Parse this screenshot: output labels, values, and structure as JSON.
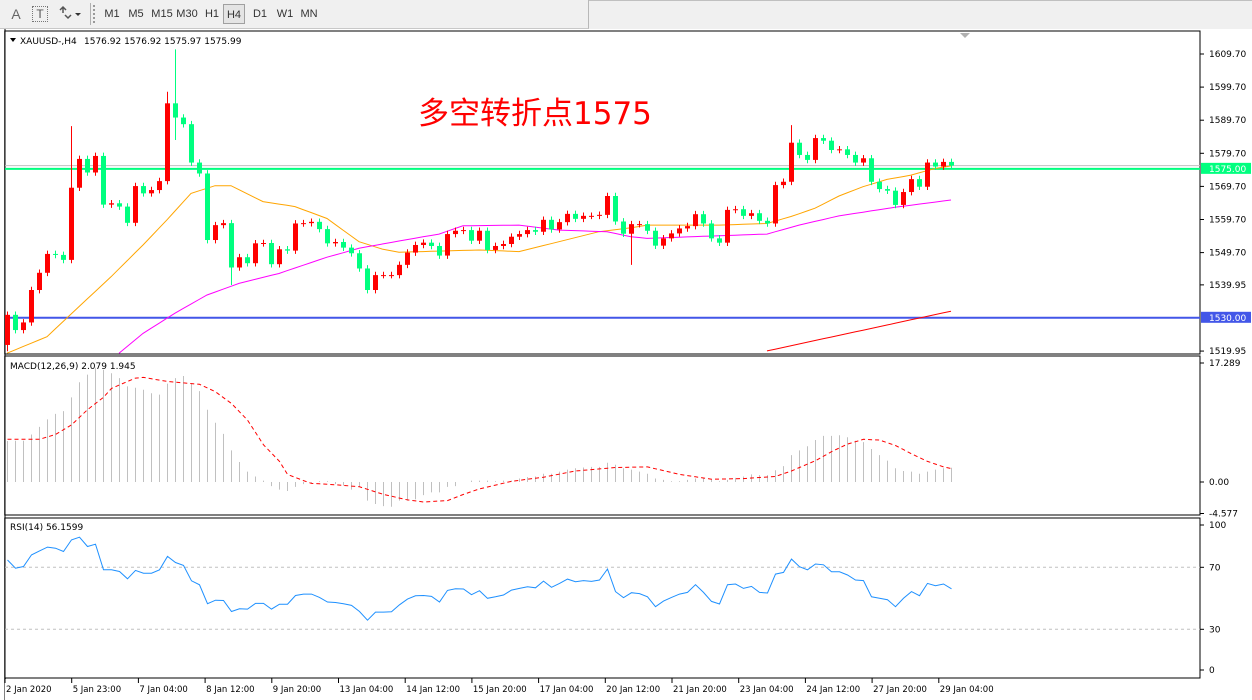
{
  "toolbar": {
    "tools": [
      {
        "label": "A",
        "icon": "text-tool-icon"
      },
      {
        "label": "T",
        "icon": "text-label-tool-icon"
      },
      {
        "label": "",
        "icon": "arrows-tool-icon"
      }
    ],
    "timeframes": [
      "M1",
      "M5",
      "M15",
      "M30",
      "H1",
      "H4",
      "D1",
      "W1",
      "MN"
    ],
    "active_timeframe": "H4"
  },
  "chart_header": {
    "symbol": "XAUUSD-,H4",
    "ohlc": "1576.92 1576.92 1575.97 1575.99"
  },
  "annotation": "多空转折点1575",
  "colors": {
    "bull_candle": "#ff0000",
    "bear_candle": "#00ff7f",
    "ma_fast": "#ffa500",
    "ma_slow": "#ff00ff",
    "ma_long": "#ff0000",
    "macd_histogram": "#c0c0c0",
    "macd_signal": "#ff0000",
    "rsi_line": "#1e90ff",
    "level_line": "#c0c0c0"
  },
  "chart_data": [
    {
      "type": "candlestick",
      "title": "XAUUSD-,H4",
      "ylim": [
        1519.95,
        1609.7
      ],
      "price_ticks": [
        {
          "label": "1609.70",
          "value": 1609.7
        },
        {
          "label": "1599.70",
          "value": 1599.7
        },
        {
          "label": "1589.70",
          "value": 1589.7
        },
        {
          "label": "1579.70",
          "value": 1579.7
        },
        {
          "label": "1569.70",
          "value": 1569.7
        },
        {
          "label": "1559.70",
          "value": 1559.7
        },
        {
          "label": "1549.70",
          "value": 1549.7
        },
        {
          "label": "1539.95",
          "value": 1539.95
        },
        {
          "label": "1519.95",
          "value": 1519.95
        }
      ],
      "time_labels": [
        "2 Jan 2020",
        "5 Jan 23:00",
        "7 Jan 04:00",
        "8 Jan 12:00",
        "9 Jan 20:00",
        "13 Jan 04:00",
        "14 Jan 12:00",
        "15 Jan 20:00",
        "17 Jan 04:00",
        "20 Jan 12:00",
        "21 Jan 20:00",
        "23 Jan 04:00",
        "24 Jan 12:00",
        "27 Jan 20:00",
        "29 Jan 04:00"
      ],
      "first_open": 1521.8,
      "close": [
        1530.9,
        1526.3,
        1528.6,
        1538.4,
        1543.6,
        1549.3,
        1549.0,
        1547.5,
        1569.3,
        1578.0,
        1573.9,
        1578.9,
        1564.2,
        1564.6,
        1563.6,
        1558.7,
        1569.8,
        1567.6,
        1568.6,
        1571.3,
        1594.8,
        1590.5,
        1588.5,
        1576.9,
        1573.6,
        1553.5,
        1558.0,
        1558.6,
        1545.2,
        1548.3,
        1546.5,
        1552.5,
        1552.6,
        1546.2,
        1550.7,
        1550.3,
        1558.5,
        1558.6,
        1559.0,
        1556.8,
        1552.5,
        1552.9,
        1551.2,
        1549.5,
        1544.9,
        1538.4,
        1542.9,
        1542.9,
        1542.9,
        1546.0,
        1549.7,
        1552.0,
        1552.7,
        1551.7,
        1548.8,
        1555.3,
        1556.3,
        1556.5,
        1553.3,
        1556.3,
        1550.5,
        1551.7,
        1552.3,
        1554.5,
        1555.3,
        1556.5,
        1556.0,
        1559.6,
        1556.7,
        1558.9,
        1561.4,
        1559.9,
        1560.8,
        1560.8,
        1561.1,
        1566.8,
        1559.1,
        1555.4,
        1558.3,
        1558.3,
        1556.3,
        1551.8,
        1554.0,
        1555.5,
        1557.0,
        1557.7,
        1561.3,
        1558.5,
        1554.0,
        1552.7,
        1562.6,
        1562.8,
        1560.8,
        1561.6,
        1559.3,
        1558.5,
        1570.1,
        1571.1,
        1582.9,
        1579.2,
        1577.7,
        1584.3,
        1583.5,
        1580.7,
        1580.9,
        1579.2,
        1576.9,
        1578.2,
        1571.1,
        1568.9,
        1568.4,
        1564.1,
        1568.0,
        1571.9,
        1569.6,
        1576.9,
        1575.7,
        1577.1,
        1575.99
      ],
      "notable_wicks": [
        {
          "bar": 0,
          "low": 1519.9
        },
        {
          "bar": 8,
          "high": 1587.9
        },
        {
          "bar": 20,
          "high": 1598.3
        },
        {
          "bar": 21,
          "high": 1611.1,
          "low": 1583.7
        },
        {
          "bar": 28,
          "low": 1539.9
        },
        {
          "bar": 78,
          "low": 1546.0
        },
        {
          "bar": 98,
          "high": 1588.2
        }
      ],
      "moving_averages": [
        {
          "color_key": "ma_fast",
          "points": [
            [
              0,
              1519.3
            ],
            [
              5,
              1524.3
            ],
            [
              9,
              1533.4
            ],
            [
              13,
              1542.4
            ],
            [
              17,
              1552
            ],
            [
              20,
              1559.6
            ],
            [
              23,
              1567.6
            ],
            [
              26,
              1569.9
            ],
            [
              28,
              1569.9
            ],
            [
              32,
              1565.1
            ],
            [
              36,
              1563.6
            ],
            [
              40,
              1560.0
            ],
            [
              44,
              1553.0
            ],
            [
              47,
              1550.7
            ],
            [
              49,
              1549.8
            ],
            [
              59,
              1550.5
            ],
            [
              64,
              1550
            ],
            [
              69,
              1553
            ],
            [
              74,
              1556
            ],
            [
              78,
              1557.2
            ],
            [
              80,
              1558
            ],
            [
              89,
              1558
            ],
            [
              95,
              1558.5
            ],
            [
              98,
              1560.6
            ],
            [
              101,
              1563.1
            ],
            [
              104,
              1566.8
            ],
            [
              107,
              1569.6
            ],
            [
              110,
              1571.8
            ],
            [
              113,
              1573.1
            ],
            [
              116,
              1575.1
            ],
            [
              118,
              1575.9
            ]
          ]
        },
        {
          "color_key": "ma_slow",
          "points": [
            [
              14,
              1519.3
            ],
            [
              17,
              1525.3
            ],
            [
              21,
              1531.4
            ],
            [
              25,
              1536.9
            ],
            [
              29,
              1540.4
            ],
            [
              34,
              1543.4
            ],
            [
              40,
              1548.3
            ],
            [
              44,
              1551
            ],
            [
              49,
              1553.2
            ],
            [
              54,
              1555.3
            ],
            [
              57,
              1557.8
            ],
            [
              64,
              1558
            ],
            [
              69,
              1556.5
            ],
            [
              75,
              1556
            ],
            [
              78,
              1554.5
            ],
            [
              80,
              1554
            ],
            [
              88,
              1554.7
            ],
            [
              95,
              1555.3
            ],
            [
              99,
              1558
            ],
            [
              104,
              1560.8
            ],
            [
              111,
              1563.4
            ],
            [
              118,
              1565.6
            ]
          ]
        },
        {
          "color_key": "ma_long",
          "points": [
            [
              95,
              1520
            ],
            [
              118,
              1532
            ]
          ]
        }
      ],
      "horizontal_lines": [
        {
          "label": "1575.00",
          "value": 1575.0,
          "color": "#00ff7f",
          "text_color": "#ffffff"
        },
        {
          "label": "1530.00",
          "value": 1530.0,
          "color": "#4256e8",
          "text_color": "#ffffff"
        }
      ],
      "current_price": {
        "value": 1575.99,
        "badge_color": "#000000"
      }
    },
    {
      "type": "bar+line",
      "title": "MACD(12,26,9) 2.079 1.945",
      "ylim": [
        -4.577,
        17.289
      ],
      "ticks": [
        {
          "label": "17.289",
          "value": 17.289
        },
        {
          "label": "0.00",
          "value": 0
        },
        {
          "label": "-4.577",
          "value": -4.577
        }
      ],
      "histogram": [
        5.96,
        6.0,
        6.0,
        6.9,
        8.0,
        9.1,
        9.9,
        10.3,
        12.3,
        14.5,
        15.6,
        16.6,
        16.3,
        15.8,
        15.1,
        13.9,
        13.7,
        13.4,
        12.9,
        12.7,
        14.3,
        15.1,
        15.4,
        14.3,
        13.2,
        10.5,
        8.6,
        7.0,
        4.6,
        2.9,
        1.5,
        0.8,
        0.2,
        -0.6,
        -1.1,
        -1.3,
        -0.7,
        -0.3,
        -0.1,
        0.1,
        0.1,
        -0.3,
        -0.5,
        -1.1,
        -0.7,
        -2.7,
        -3.2,
        -3.5,
        -3.6,
        -2.7,
        -2.7,
        -2.5,
        -1.9,
        -1.5,
        -1.5,
        -0.7,
        -0.6,
        0,
        0.2,
        0.2,
        0.2,
        0.1,
        0.2,
        0.2,
        0.5,
        0.7,
        0.8,
        1.2,
        1.2,
        1.5,
        1.8,
        2.0,
        2.1,
        2.2,
        2.2,
        2.8,
        2.5,
        2.0,
        1.8,
        1.5,
        1.2,
        0.5,
        0.3,
        0.1,
        0.1,
        0.3,
        0.5,
        0.5,
        0.3,
        0.1,
        0.3,
        0.6,
        0.8,
        1.1,
        1.0,
        1.0,
        1.7,
        2.3,
        3.9,
        4.6,
        5.2,
        6.1,
        6.7,
        6.7,
        6.8,
        6.5,
        6.0,
        5.8,
        4.8,
        3.9,
        3.1,
        2.0,
        1.6,
        1.5,
        1.2,
        1.5,
        1.8,
        2.0,
        2.079
      ],
      "signal_points": [
        [
          0,
          6.2
        ],
        [
          4,
          6.2
        ],
        [
          6,
          6.9
        ],
        [
          8,
          8.3
        ],
        [
          10,
          10.5
        ],
        [
          12,
          12.3
        ],
        [
          13,
          13.6
        ],
        [
          16,
          15.1
        ],
        [
          17,
          15.2
        ],
        [
          20,
          14.6
        ],
        [
          24,
          14.2
        ],
        [
          26,
          13.1
        ],
        [
          28,
          11.4
        ],
        [
          30,
          9.0
        ],
        [
          32,
          5.4
        ],
        [
          34,
          3.0
        ],
        [
          35,
          1.1
        ],
        [
          37,
          0.2
        ],
        [
          38,
          -0.2
        ],
        [
          41,
          -0.4
        ],
        [
          44,
          -0.7
        ],
        [
          47,
          -1.8
        ],
        [
          50,
          -2.6
        ],
        [
          52,
          -2.9
        ],
        [
          55,
          -2.7
        ],
        [
          57,
          -1.8
        ],
        [
          59,
          -1.0
        ],
        [
          63,
          0.1
        ],
        [
          67,
          0.7
        ],
        [
          71,
          1.6
        ],
        [
          76,
          2.1
        ],
        [
          80,
          2.2
        ],
        [
          84,
          1.1
        ],
        [
          88,
          0.4
        ],
        [
          92,
          0.5
        ],
        [
          96,
          0.8
        ],
        [
          98,
          1.6
        ],
        [
          101,
          3.1
        ],
        [
          103,
          4.4
        ],
        [
          105,
          5.5
        ],
        [
          107,
          6.2
        ],
        [
          109,
          6.1
        ],
        [
          111,
          5.3
        ],
        [
          113,
          4.1
        ],
        [
          115,
          3.0
        ],
        [
          117,
          2.2
        ],
        [
          118,
          1.945
        ]
      ]
    },
    {
      "type": "line",
      "title": "RSI(14) 56.1599",
      "ylim": [
        0,
        100
      ],
      "ticks": [
        {
          "label": "100",
          "value": 100
        },
        {
          "label": "70",
          "value": 70
        },
        {
          "label": "30",
          "value": 30
        },
        {
          "label": "0",
          "value": 0
        }
      ],
      "levels": [
        70,
        30
      ],
      "values": [
        74.7,
        69.4,
        70.5,
        78.0,
        80.6,
        83.0,
        82.3,
        80.2,
        87.7,
        89.4,
        83.4,
        84.9,
        68.4,
        68.4,
        67.3,
        62.6,
        68.0,
        66.2,
        66.2,
        68.4,
        77.0,
        73.1,
        71.2,
        61.3,
        58.7,
        46.5,
        48.8,
        48.6,
        41.5,
        43.2,
        43.0,
        46.7,
        46.7,
        43.0,
        46.2,
        46.2,
        51.8,
        52.7,
        52.7,
        50.6,
        47.6,
        47.3,
        46.5,
        45.4,
        41.5,
        35.9,
        41.1,
        41.1,
        41.3,
        45.8,
        49.5,
        51.6,
        51.8,
        51.2,
        47.6,
        55.1,
        56.2,
        56.0,
        52.3,
        54.9,
        50.0,
        51.0,
        52.1,
        55.3,
        56.4,
        57.5,
        56.8,
        61.1,
        57.1,
        59.6,
        62.4,
        60.7,
        61.4,
        60.9,
        61.8,
        68.9,
        54.3,
        50.4,
        53.6,
        53.0,
        51.0,
        44.6,
        48.2,
        50.6,
        52.7,
        53.8,
        58.8,
        53.8,
        48.0,
        46.3,
        58.8,
        59.2,
        56.4,
        57.7,
        53.8,
        53.4,
        65.6,
        66.7,
        75.3,
        70.4,
        68.4,
        72.1,
        71.6,
        67.1,
        67.1,
        65.0,
        61.8,
        61.4,
        51.0,
        50.0,
        49.1,
        44.6,
        50.0,
        54.3,
        51.7,
        59.6,
        58.1,
        59.2,
        56.16
      ]
    }
  ]
}
